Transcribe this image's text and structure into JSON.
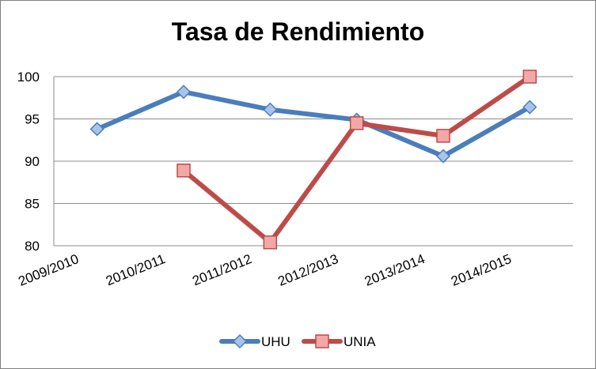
{
  "chart_data": {
    "type": "line",
    "title": "Tasa de Rendimiento",
    "xlabel": "",
    "ylabel": "",
    "categories": [
      "2009/2010",
      "2010/2011",
      "2011/2012",
      "2012/2013",
      "2013/2014",
      "2014/2015"
    ],
    "ylim": [
      80,
      100
    ],
    "yticks": [
      80,
      85,
      90,
      95,
      100
    ],
    "grid": true,
    "legend": "bottom",
    "series": [
      {
        "name": "UHU",
        "values": [
          93.8,
          98.2,
          96.1,
          94.9,
          90.6,
          96.4
        ],
        "color": "#4a7ebb",
        "marker": "diamond",
        "marker_fill": "#a9c4eb"
      },
      {
        "name": "UNIA",
        "values": [
          null,
          88.9,
          80.4,
          94.5,
          93.0,
          100.0
        ],
        "color": "#be4b48",
        "marker": "square",
        "marker_fill": "#f2a8a6"
      }
    ]
  }
}
